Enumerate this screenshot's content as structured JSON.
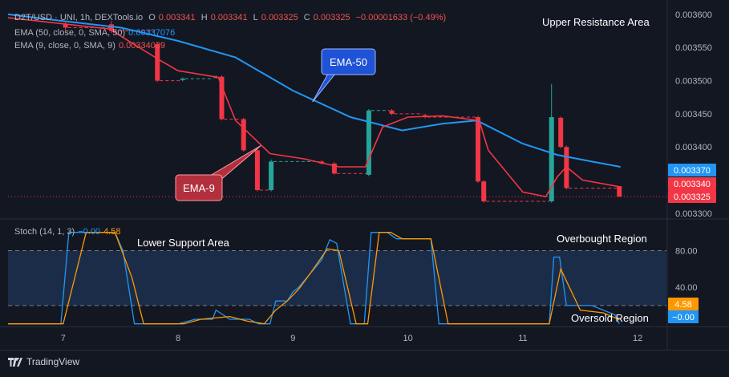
{
  "header": {
    "symbol": "D2T/USD · UNI, 1h, DEXTools.io",
    "o_label": "O",
    "o_value": "0.003341",
    "h_label": "H",
    "h_value": "0.003341",
    "l_label": "L",
    "l_value": "0.003325",
    "c_label": "C",
    "c_value": "0.003325",
    "change": "−0.00001633 (−0.49%)"
  },
  "indicators": {
    "ema50_label": "EMA (50, close, 0, SMA, 50)",
    "ema50_value": "0.00337076",
    "ema9_label": "EMA (9, close, 0, SMA, 9)",
    "ema9_value": "0.00334039"
  },
  "stoch_legend": {
    "label": "Stoch (14, 1, 3)",
    "k_value": "−0.00",
    "d_value": "4.58"
  },
  "zones": {
    "upper": "Upper Resistance Area",
    "lower_support": "Lower Support Area",
    "overbought": "Overbought Region",
    "oversold": "Oversold Region"
  },
  "callouts": {
    "ema50": "EMA-50",
    "ema9": "EMA-9"
  },
  "price_badges": {
    "ema50": "0.003370",
    "ema9": "0.003340",
    "last": "0.003325"
  },
  "stoch_badges": {
    "d": "4.58",
    "k": "−0.00"
  },
  "branding": "TradingView",
  "colors": {
    "background": "#131722",
    "up": "#26a69a",
    "down": "#f23645",
    "ema9": "#f23645",
    "ema50": "#2196f3",
    "stoch_k": "#2196f3",
    "stoch_d": "#ff9800",
    "band": "#1b2c48"
  },
  "chart_data": [
    {
      "type": "candlestick",
      "ylim": [
        0.003295,
        0.003612
      ],
      "y_ticks": [
        "0.003600",
        "0.003550",
        "0.003500",
        "0.003450",
        "0.003400",
        "0.003350",
        "0.003300"
      ],
      "y_tick_values": [
        0.0036,
        0.00355,
        0.0035,
        0.00345,
        0.0034,
        0.00335,
        0.0033
      ],
      "x_ticks": [
        "7",
        "8",
        "9",
        "10",
        "11",
        "12"
      ],
      "x_tick_values": [
        7,
        8,
        9,
        10,
        11,
        12
      ],
      "xlim": [
        6.52,
        12.25
      ],
      "candles": [
        {
          "x": 7.02,
          "o": 0.003585,
          "c": 0.00358,
          "h": 0.00359,
          "l": 0.003576
        },
        {
          "x": 7.42,
          "o": 0.003585,
          "c": 0.003575,
          "h": 0.00359,
          "l": 0.003572
        },
        {
          "x": 7.82,
          "o": 0.003555,
          "c": 0.0035,
          "h": 0.003558,
          "l": 0.003498
        },
        {
          "x": 8.04,
          "o": 0.003501,
          "c": 0.003503,
          "h": 0.003505,
          "l": 0.003499
        },
        {
          "x": 8.33,
          "o": 0.003505,
          "c": 0.003506,
          "h": 0.003508,
          "l": 0.003503
        },
        {
          "x": 8.38,
          "o": 0.003506,
          "c": 0.003442,
          "h": 0.003508,
          "l": 0.00344
        },
        {
          "x": 8.57,
          "o": 0.003442,
          "c": 0.003395,
          "h": 0.003444,
          "l": 0.003393
        },
        {
          "x": 8.69,
          "o": 0.003395,
          "c": 0.003335,
          "h": 0.003397,
          "l": 0.003333
        },
        {
          "x": 8.81,
          "o": 0.003335,
          "c": 0.003378,
          "h": 0.003381,
          "l": 0.003333
        },
        {
          "x": 9.25,
          "o": 0.003378,
          "c": 0.003375,
          "h": 0.00338,
          "l": 0.003373
        },
        {
          "x": 9.36,
          "o": 0.003375,
          "c": 0.00336,
          "h": 0.003377,
          "l": 0.003358
        },
        {
          "x": 9.66,
          "o": 0.003358,
          "c": 0.003455,
          "h": 0.003457,
          "l": 0.003356
        },
        {
          "x": 9.86,
          "o": 0.003455,
          "c": 0.00345,
          "h": 0.003457,
          "l": 0.003448
        },
        {
          "x": 10.15,
          "o": 0.003448,
          "c": 0.003445,
          "h": 0.00345,
          "l": 0.003443
        },
        {
          "x": 10.61,
          "o": 0.003445,
          "c": 0.003348,
          "h": 0.003447,
          "l": 0.003346
        },
        {
          "x": 10.66,
          "o": 0.003348,
          "c": 0.003318,
          "h": 0.00335,
          "l": 0.003316
        },
        {
          "x": 11.25,
          "o": 0.003318,
          "c": 0.003445,
          "h": 0.003495,
          "l": 0.003316
        },
        {
          "x": 11.33,
          "o": 0.003444,
          "c": 0.0034,
          "h": 0.003446,
          "l": 0.003398
        },
        {
          "x": 11.38,
          "o": 0.0034,
          "c": 0.003338,
          "h": 0.003402,
          "l": 0.003336
        },
        {
          "x": 11.84,
          "o": 0.003341,
          "c": 0.003325,
          "h": 0.003341,
          "l": 0.003325
        }
      ],
      "ema50": [
        [
          6.52,
          0.0036
        ],
        [
          7.0,
          0.00359
        ],
        [
          7.5,
          0.00358
        ],
        [
          8.0,
          0.00356
        ],
        [
          8.5,
          0.003535
        ],
        [
          9.0,
          0.003485
        ],
        [
          9.5,
          0.003445
        ],
        [
          9.95,
          0.003425
        ],
        [
          10.3,
          0.003435
        ],
        [
          10.6,
          0.00344
        ],
        [
          11.0,
          0.003405
        ],
        [
          11.3,
          0.003388
        ],
        [
          11.6,
          0.003378
        ],
        [
          11.85,
          0.00337
        ]
      ],
      "ema9": [
        [
          6.52,
          0.003595
        ],
        [
          7.4,
          0.003578
        ],
        [
          7.85,
          0.00353
        ],
        [
          8.0,
          0.003515
        ],
        [
          8.35,
          0.003505
        ],
        [
          8.5,
          0.00344
        ],
        [
          8.8,
          0.00339
        ],
        [
          9.1,
          0.003382
        ],
        [
          9.4,
          0.00337
        ],
        [
          9.63,
          0.00337
        ],
        [
          9.78,
          0.00343
        ],
        [
          10.0,
          0.003445
        ],
        [
          10.3,
          0.003447
        ],
        [
          10.62,
          0.00344
        ],
        [
          10.7,
          0.003395
        ],
        [
          11.0,
          0.003332
        ],
        [
          11.2,
          0.003325
        ],
        [
          11.3,
          0.003355
        ],
        [
          11.38,
          0.00337
        ],
        [
          11.52,
          0.00335
        ],
        [
          11.84,
          0.00334
        ]
      ],
      "last_price": 0.003325
    },
    {
      "type": "line",
      "title": "Stoch (14, 1, 3)",
      "ylim": [
        -2,
        112
      ],
      "y_ticks": [
        "80.00",
        "40.00"
      ],
      "y_tick_values": [
        80,
        40
      ],
      "band": [
        20,
        80
      ],
      "series": [
        {
          "name": "%K",
          "color": "#2196f3",
          "points": [
            [
              6.52,
              0
            ],
            [
              6.98,
              0
            ],
            [
              7.05,
              100
            ],
            [
              7.45,
              100
            ],
            [
              7.52,
              80
            ],
            [
              7.62,
              0
            ],
            [
              8.0,
              0
            ],
            [
              8.15,
              5
            ],
            [
              8.3,
              5
            ],
            [
              8.33,
              15
            ],
            [
              8.45,
              5
            ],
            [
              8.62,
              5
            ],
            [
              8.7,
              0
            ],
            [
              8.8,
              0
            ],
            [
              8.85,
              25
            ],
            [
              8.95,
              25
            ],
            [
              9.0,
              35
            ],
            [
              9.05,
              40
            ],
            [
              9.25,
              70
            ],
            [
              9.32,
              92
            ],
            [
              9.38,
              88
            ],
            [
              9.5,
              0
            ],
            [
              9.62,
              0
            ],
            [
              9.68,
              100
            ],
            [
              9.82,
              100
            ],
            [
              9.9,
              93
            ],
            [
              10.2,
              93
            ],
            [
              10.27,
              0
            ],
            [
              11.23,
              0
            ],
            [
              11.27,
              73
            ],
            [
              11.32,
              73
            ],
            [
              11.38,
              20
            ],
            [
              11.6,
              20
            ],
            [
              11.8,
              10
            ],
            [
              11.84,
              0
            ]
          ]
        },
        {
          "name": "%D",
          "color": "#ff9800",
          "points": [
            [
              6.52,
              0
            ],
            [
              7.0,
              0
            ],
            [
              7.2,
              100
            ],
            [
              7.45,
              100
            ],
            [
              7.6,
              50
            ],
            [
              7.7,
              0
            ],
            [
              8.05,
              0
            ],
            [
              8.2,
              5
            ],
            [
              8.45,
              8
            ],
            [
              8.6,
              3
            ],
            [
              8.75,
              0
            ],
            [
              8.85,
              15
            ],
            [
              8.95,
              25
            ],
            [
              9.05,
              38
            ],
            [
              9.15,
              55
            ],
            [
              9.3,
              82
            ],
            [
              9.4,
              80
            ],
            [
              9.55,
              0
            ],
            [
              9.65,
              0
            ],
            [
              9.75,
              100
            ],
            [
              9.85,
              100
            ],
            [
              9.95,
              93
            ],
            [
              10.2,
              93
            ],
            [
              10.35,
              0
            ],
            [
              11.23,
              0
            ],
            [
              11.33,
              60
            ],
            [
              11.5,
              15
            ],
            [
              11.7,
              12
            ],
            [
              11.84,
              4.58
            ]
          ]
        }
      ]
    }
  ]
}
